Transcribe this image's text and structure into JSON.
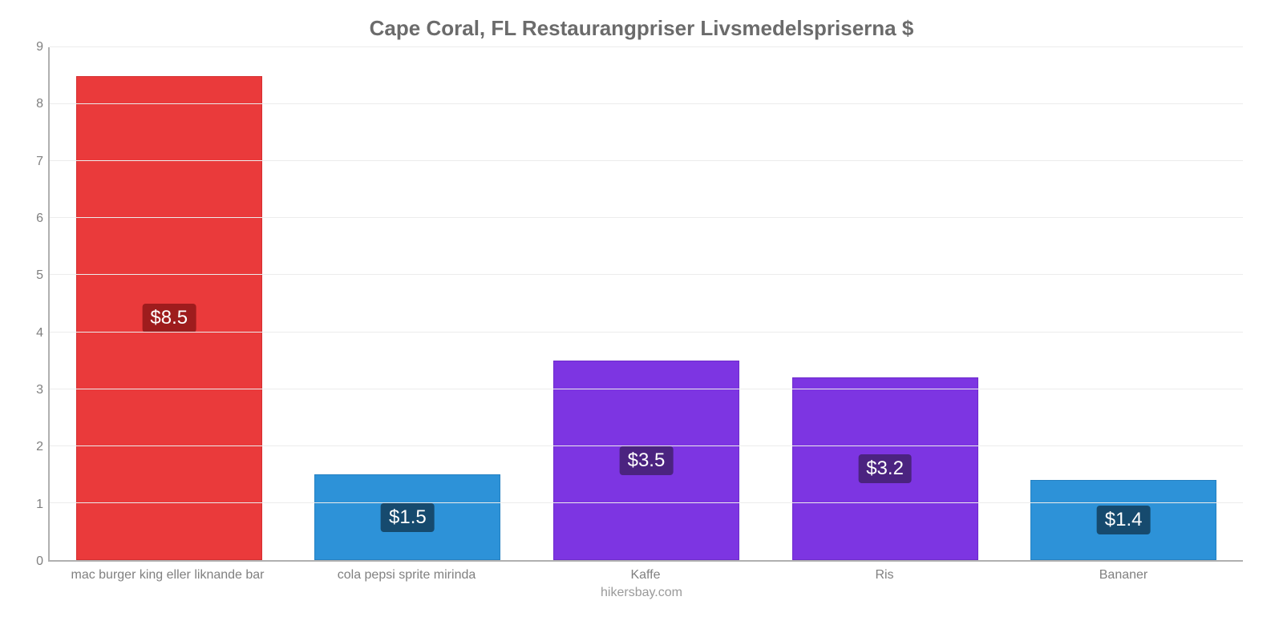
{
  "chart": {
    "type": "bar",
    "title": "Cape Coral, FL Restaurangpriser Livsmedelspriserna $",
    "title_fontsize": 26,
    "title_color": "#6b6b6b",
    "footer": "hikersbay.com",
    "footer_color": "#9a9a9a",
    "background_color": "#ffffff",
    "axis_color": "#b0b0b0",
    "grid_color": "#ececec",
    "tick_label_color": "#808080",
    "ylim": [
      0,
      9
    ],
    "ytick_step": 1,
    "bar_width_pct": 78,
    "value_label_fontsize": 24,
    "value_label_text_color": "#ffffff",
    "categories": [
      "mac burger king eller liknande bar",
      "cola pepsi sprite mirinda",
      "Kaffe",
      "Ris",
      "Bananer"
    ],
    "values": [
      8.5,
      1.5,
      3.5,
      3.2,
      1.4
    ],
    "value_labels": [
      "$8.5",
      "$1.5",
      "$3.5",
      "$3.2",
      "$1.4"
    ],
    "bar_colors": [
      "#ea3a3b",
      "#2d92d8",
      "#7d35e2",
      "#7d35e2",
      "#2d92d8"
    ],
    "bar_border_colors": [
      "#d52f30",
      "#2581c2",
      "#6e2bcc",
      "#6e2bcc",
      "#2581c2"
    ],
    "label_bg_colors": [
      "#9e1c1d",
      "#164a6e",
      "#4b2380",
      "#4b2380",
      "#164a6e"
    ],
    "x_label_fontsize": 16,
    "y_label_fontsize": 16
  }
}
